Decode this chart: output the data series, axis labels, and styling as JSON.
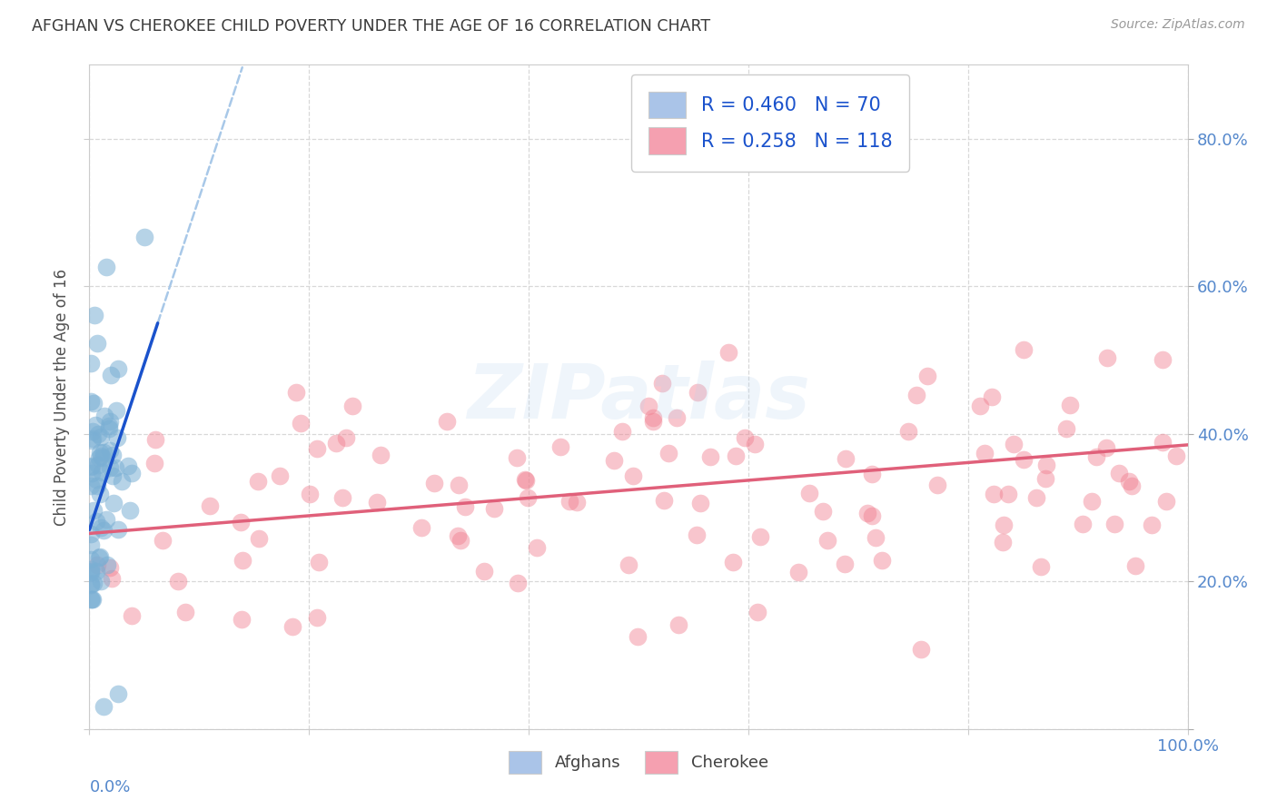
{
  "title": "AFGHAN VS CHEROKEE CHILD POVERTY UNDER THE AGE OF 16 CORRELATION CHART",
  "source": "Source: ZipAtlas.com",
  "ylabel": "Child Poverty Under the Age of 16",
  "xlim": [
    0.0,
    1.0
  ],
  "ylim": [
    0.0,
    0.9
  ],
  "xtick_vals": [
    0.0,
    0.2,
    0.4,
    0.6,
    0.8,
    1.0
  ],
  "xticklabels": [
    "",
    "",
    "",
    "",
    "",
    "100.0%"
  ],
  "ytick_vals": [
    0.0,
    0.2,
    0.4,
    0.6,
    0.8
  ],
  "yticklabels_right": [
    "",
    "20.0%",
    "40.0%",
    "60.0%",
    "80.0%"
  ],
  "scatter_blue_color": "#7aafd4",
  "scatter_pink_color": "#f08090",
  "line_blue_color": "#1a52cc",
  "line_pink_color": "#e0607a",
  "line_blue_dashed_color": "#a8c8e8",
  "legend_r1": "R = 0.460",
  "legend_n1": "N = 70",
  "legend_r2": "R = 0.258",
  "legend_n2": "N = 118",
  "legend_fc1": "#aac4e8",
  "legend_fc2": "#f5a0b0",
  "bottom_legend_labels": [
    "Afghans",
    "Cherokee"
  ],
  "bottom_legend_colors": [
    "#aac4e8",
    "#f5a0b0"
  ],
  "watermark": "ZIPatlas",
  "background_color": "#ffffff",
  "grid_color": "#d8d8d8",
  "title_color": "#3a3a3a",
  "axis_label_color": "#505050",
  "tick_label_color": "#5588cc",
  "legend_text_color": "#1a52cc",
  "corner_label_color": "#5588cc",
  "source_color": "#999999",
  "af_line_intercept": 0.27,
  "af_line_slope": 4.5,
  "ch_line_intercept": 0.265,
  "ch_line_slope": 0.12
}
